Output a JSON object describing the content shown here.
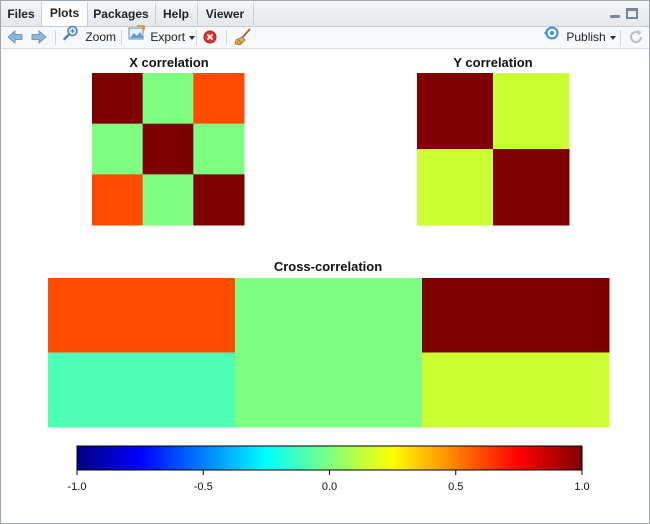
{
  "tabs": [
    {
      "label": "Files",
      "active": false
    },
    {
      "label": "Plots",
      "active": true
    },
    {
      "label": "Packages",
      "active": false
    },
    {
      "label": "Help",
      "active": false
    },
    {
      "label": "Viewer",
      "active": false
    }
  ],
  "toolbar": {
    "zoom_label": "Zoom",
    "export_label": "Export",
    "publish_label": "Publish"
  },
  "colormap": {
    "name": "jet",
    "stops": [
      "#00007f",
      "#0000ff",
      "#007fff",
      "#00ffff",
      "#7fff7f",
      "#ffff00",
      "#ff7f00",
      "#ff0000",
      "#7f0000"
    ]
  },
  "chart_data": [
    {
      "type": "heatmap",
      "title": "X correlation",
      "rows": 3,
      "cols": 3,
      "values": [
        [
          1.0,
          0.0,
          0.6
        ],
        [
          0.0,
          1.0,
          0.0
        ],
        [
          0.6,
          0.0,
          1.0
        ]
      ]
    },
    {
      "type": "heatmap",
      "title": "Y correlation",
      "rows": 2,
      "cols": 2,
      "values": [
        [
          1.0,
          0.15
        ],
        [
          0.15,
          1.0
        ]
      ]
    },
    {
      "type": "heatmap",
      "title": "Cross-correlation",
      "rows": 2,
      "cols": 3,
      "values": [
        [
          0.6,
          0.0,
          1.0
        ],
        [
          -0.1,
          0.0,
          0.15
        ]
      ]
    },
    {
      "type": "colorbar",
      "range": [
        -1.0,
        1.0
      ],
      "ticks": [
        -1.0,
        -0.5,
        0.0,
        0.5,
        1.0
      ],
      "tick_labels": [
        "-1.0",
        "-0.5",
        "0.0",
        "0.5",
        "1.0"
      ]
    }
  ]
}
